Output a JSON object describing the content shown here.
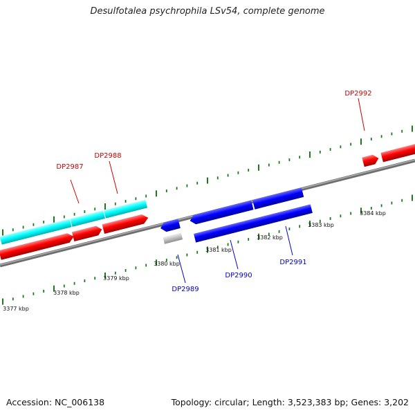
{
  "title": "Desulfotalea psychrophila LSv54, complete genome",
  "footer": {
    "accession": "Accession: NC_006138",
    "summary": "Topology: circular; Length: 3,523,383 bp; Genes: 3,202"
  },
  "colors": {
    "forward_gene": "#ff0000",
    "reverse_gene": "#0000ff",
    "highlight_band": "#00ffff",
    "unknown_gene": "#c0c0c0",
    "tick": "#1a7a1a",
    "backbone": "#808080",
    "forward_label": "#cc0000",
    "reverse_label": "#0000cc"
  },
  "scale_labels": [
    "3377 kbp",
    "3378 kbp",
    "3379 kbp",
    "3380 kbp",
    "3381 kbp",
    "3382 kbp",
    "3383 kbp",
    "3384 kbp"
  ],
  "gene_labels": {
    "forward": [
      "DP2987",
      "DP2988",
      "DP2992"
    ],
    "reverse": [
      "DP2989",
      "DP2990",
      "DP2991"
    ]
  }
}
